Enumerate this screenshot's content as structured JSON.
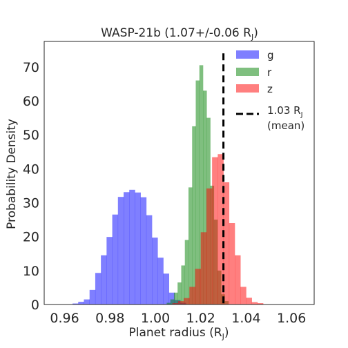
{
  "chart_data": {
    "type": "histogram",
    "title_main": "WASP-21b (1.07+/-0.06 R",
    "title_sub": "J",
    "title_end": ")",
    "xlabel_main": "Planet radius (R",
    "xlabel_sub": "J",
    "xlabel_end": ")",
    "ylabel": "Probability Density",
    "xlim": [
      0.951,
      1.07
    ],
    "ylim": [
      0,
      77.5
    ],
    "xticks": [
      {
        "value": 0.96,
        "label": "0.96"
      },
      {
        "value": 0.98,
        "label": "0.98"
      },
      {
        "value": 1.0,
        "label": "1.00"
      },
      {
        "value": 1.02,
        "label": "1.02"
      },
      {
        "value": 1.04,
        "label": "1.04"
      },
      {
        "value": 1.06,
        "label": "1.06"
      }
    ],
    "yticks": [
      {
        "value": 0,
        "label": "0"
      },
      {
        "value": 10,
        "label": "10"
      },
      {
        "value": 20,
        "label": "20"
      },
      {
        "value": 30,
        "label": "30"
      },
      {
        "value": 40,
        "label": "40"
      },
      {
        "value": 50,
        "label": "50"
      },
      {
        "value": 60,
        "label": "60"
      },
      {
        "value": 70,
        "label": "70"
      }
    ],
    "grid": false,
    "legend_position": "top-right",
    "series": [
      {
        "name": "g",
        "color": "#0000ff",
        "opacity": 0.5,
        "bin_start": 0.9635,
        "bin_width": 0.0025,
        "values": [
          0.3,
          0.8,
          1.5,
          4.3,
          9.3,
          14.5,
          19.9,
          26.5,
          31.7,
          33.1,
          33.8,
          33.0,
          31.6,
          26.3,
          19.7,
          13.8,
          9.1,
          3.5,
          1.3,
          0.5
        ]
      },
      {
        "name": "r",
        "color": "#008000",
        "opacity": 0.5,
        "bin_start": 1.005,
        "bin_width": 0.0016,
        "values": [
          0.5,
          1.5,
          3.5,
          6.5,
          11.5,
          19.0,
          34.5,
          52.5,
          66.0,
          70.5,
          63.0,
          55.0,
          35.0,
          25.0,
          10.0,
          3.0,
          1.0
        ]
      },
      {
        "name": "z",
        "color": "#ff0000",
        "opacity": 0.5,
        "bin_start": 1.0075,
        "bin_width": 0.0025,
        "values": [
          0.4,
          1.0,
          1.9,
          5.2,
          10.5,
          21.3,
          34.2,
          43.4,
          44.3,
          36.0,
          24.0,
          14.5,
          5.2,
          2.0,
          0.7,
          0.4,
          0.1
        ]
      }
    ],
    "mean_line": {
      "x": 1.03,
      "label_main": "1.03 R",
      "label_sub": "J",
      "label_line2": "(mean)"
    }
  }
}
